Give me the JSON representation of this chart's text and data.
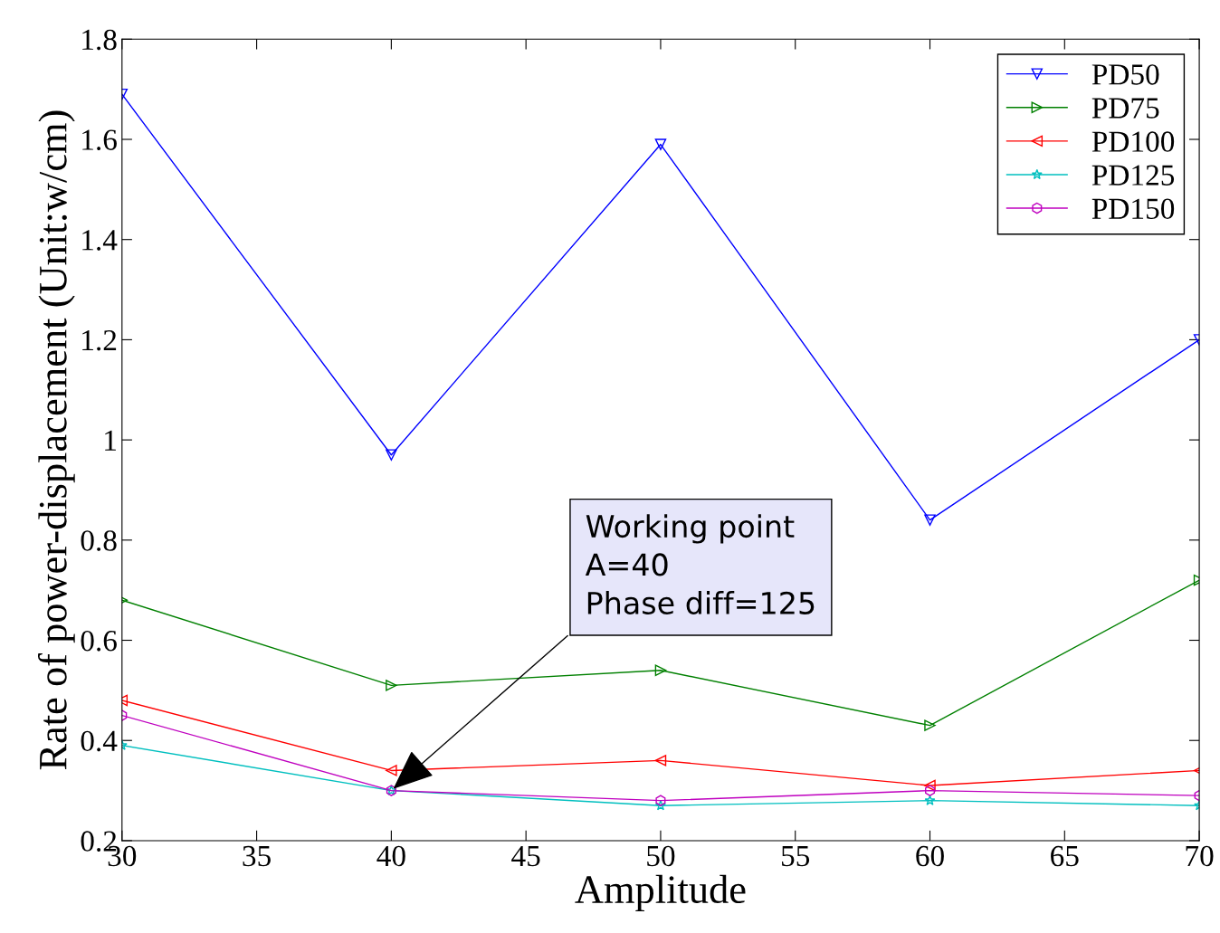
{
  "chart_data": {
    "type": "line",
    "xlabel": "Amplitude",
    "ylabel": "Rate of power-displacement (Unit:w/cm)",
    "x": [
      30,
      40,
      50,
      60,
      70
    ],
    "series": [
      {
        "name": "PD50",
        "color": "#0000ff",
        "marker": "triangle",
        "values": [
          1.69,
          0.97,
          1.59,
          0.84,
          1.2
        ]
      },
      {
        "name": "PD75",
        "color": "#008000",
        "marker": "triangle",
        "values": [
          0.68,
          0.51,
          0.54,
          0.43,
          0.72
        ]
      },
      {
        "name": "PD100",
        "color": "#ff0000",
        "marker": "triangle",
        "values": [
          0.48,
          0.34,
          0.36,
          0.31,
          0.34
        ]
      },
      {
        "name": "PD125",
        "color": "#00bfbf",
        "marker": "star",
        "values": [
          0.39,
          0.3,
          0.27,
          0.28,
          0.27
        ]
      },
      {
        "name": "PD150",
        "color": "#bf00bf",
        "marker": "star",
        "values": [
          0.45,
          0.3,
          0.28,
          0.3,
          0.29
        ]
      }
    ],
    "xlim": [
      30,
      70
    ],
    "xticks": [
      30,
      35,
      40,
      45,
      50,
      55,
      60,
      65,
      70
    ],
    "ylim": [
      0.2,
      1.8
    ],
    "yticks": [
      0.2,
      0.4,
      0.6,
      0.8,
      1,
      1.2,
      1.4,
      1.6,
      1.8
    ],
    "grid": false,
    "legend": "top right",
    "line_style": "solid",
    "annotations": [
      {
        "text": "Working point\nA=40\nPhase diff=125",
        "x": 40,
        "y": 0.3
      }
    ]
  }
}
